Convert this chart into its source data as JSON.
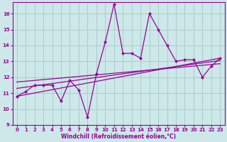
{
  "title": "",
  "xlabel": "Windchill (Refroidissement éolien,°C)",
  "ylabel": "",
  "bg_color": "#cce8e8",
  "line_color": "#990099",
  "grid_color": "#aacccc",
  "xlim": [
    -0.5,
    23.5
  ],
  "ylim": [
    9,
    16.7
  ],
  "yticks": [
    9,
    10,
    11,
    12,
    13,
    14,
    15,
    16
  ],
  "xticks": [
    0,
    1,
    2,
    3,
    4,
    5,
    6,
    7,
    8,
    9,
    10,
    11,
    12,
    13,
    14,
    15,
    16,
    17,
    18,
    19,
    20,
    21,
    22,
    23
  ],
  "series1_x": [
    0,
    1,
    2,
    3,
    4,
    5,
    6,
    7,
    8,
    9,
    10,
    11,
    12,
    13,
    14,
    15,
    16,
    17,
    18,
    19,
    20,
    21,
    22,
    23
  ],
  "series1_y": [
    10.8,
    11.1,
    11.5,
    11.5,
    11.5,
    10.5,
    11.8,
    11.2,
    9.5,
    12.2,
    14.2,
    16.6,
    13.5,
    13.5,
    13.2,
    16.0,
    15.0,
    14.0,
    13.0,
    13.1,
    13.1,
    12.0,
    12.7,
    13.2
  ],
  "trend1_x": [
    0,
    23
  ],
  "trend1_y": [
    10.8,
    13.2
  ],
  "trend2_x": [
    0,
    23
  ],
  "trend2_y": [
    11.3,
    13.05
  ],
  "trend3_x": [
    0,
    23
  ],
  "trend3_y": [
    11.7,
    12.85
  ],
  "marker_size": 2.5,
  "line_width": 0.9,
  "xlabel_fontsize": 5.5,
  "tick_fontsize": 5.0
}
